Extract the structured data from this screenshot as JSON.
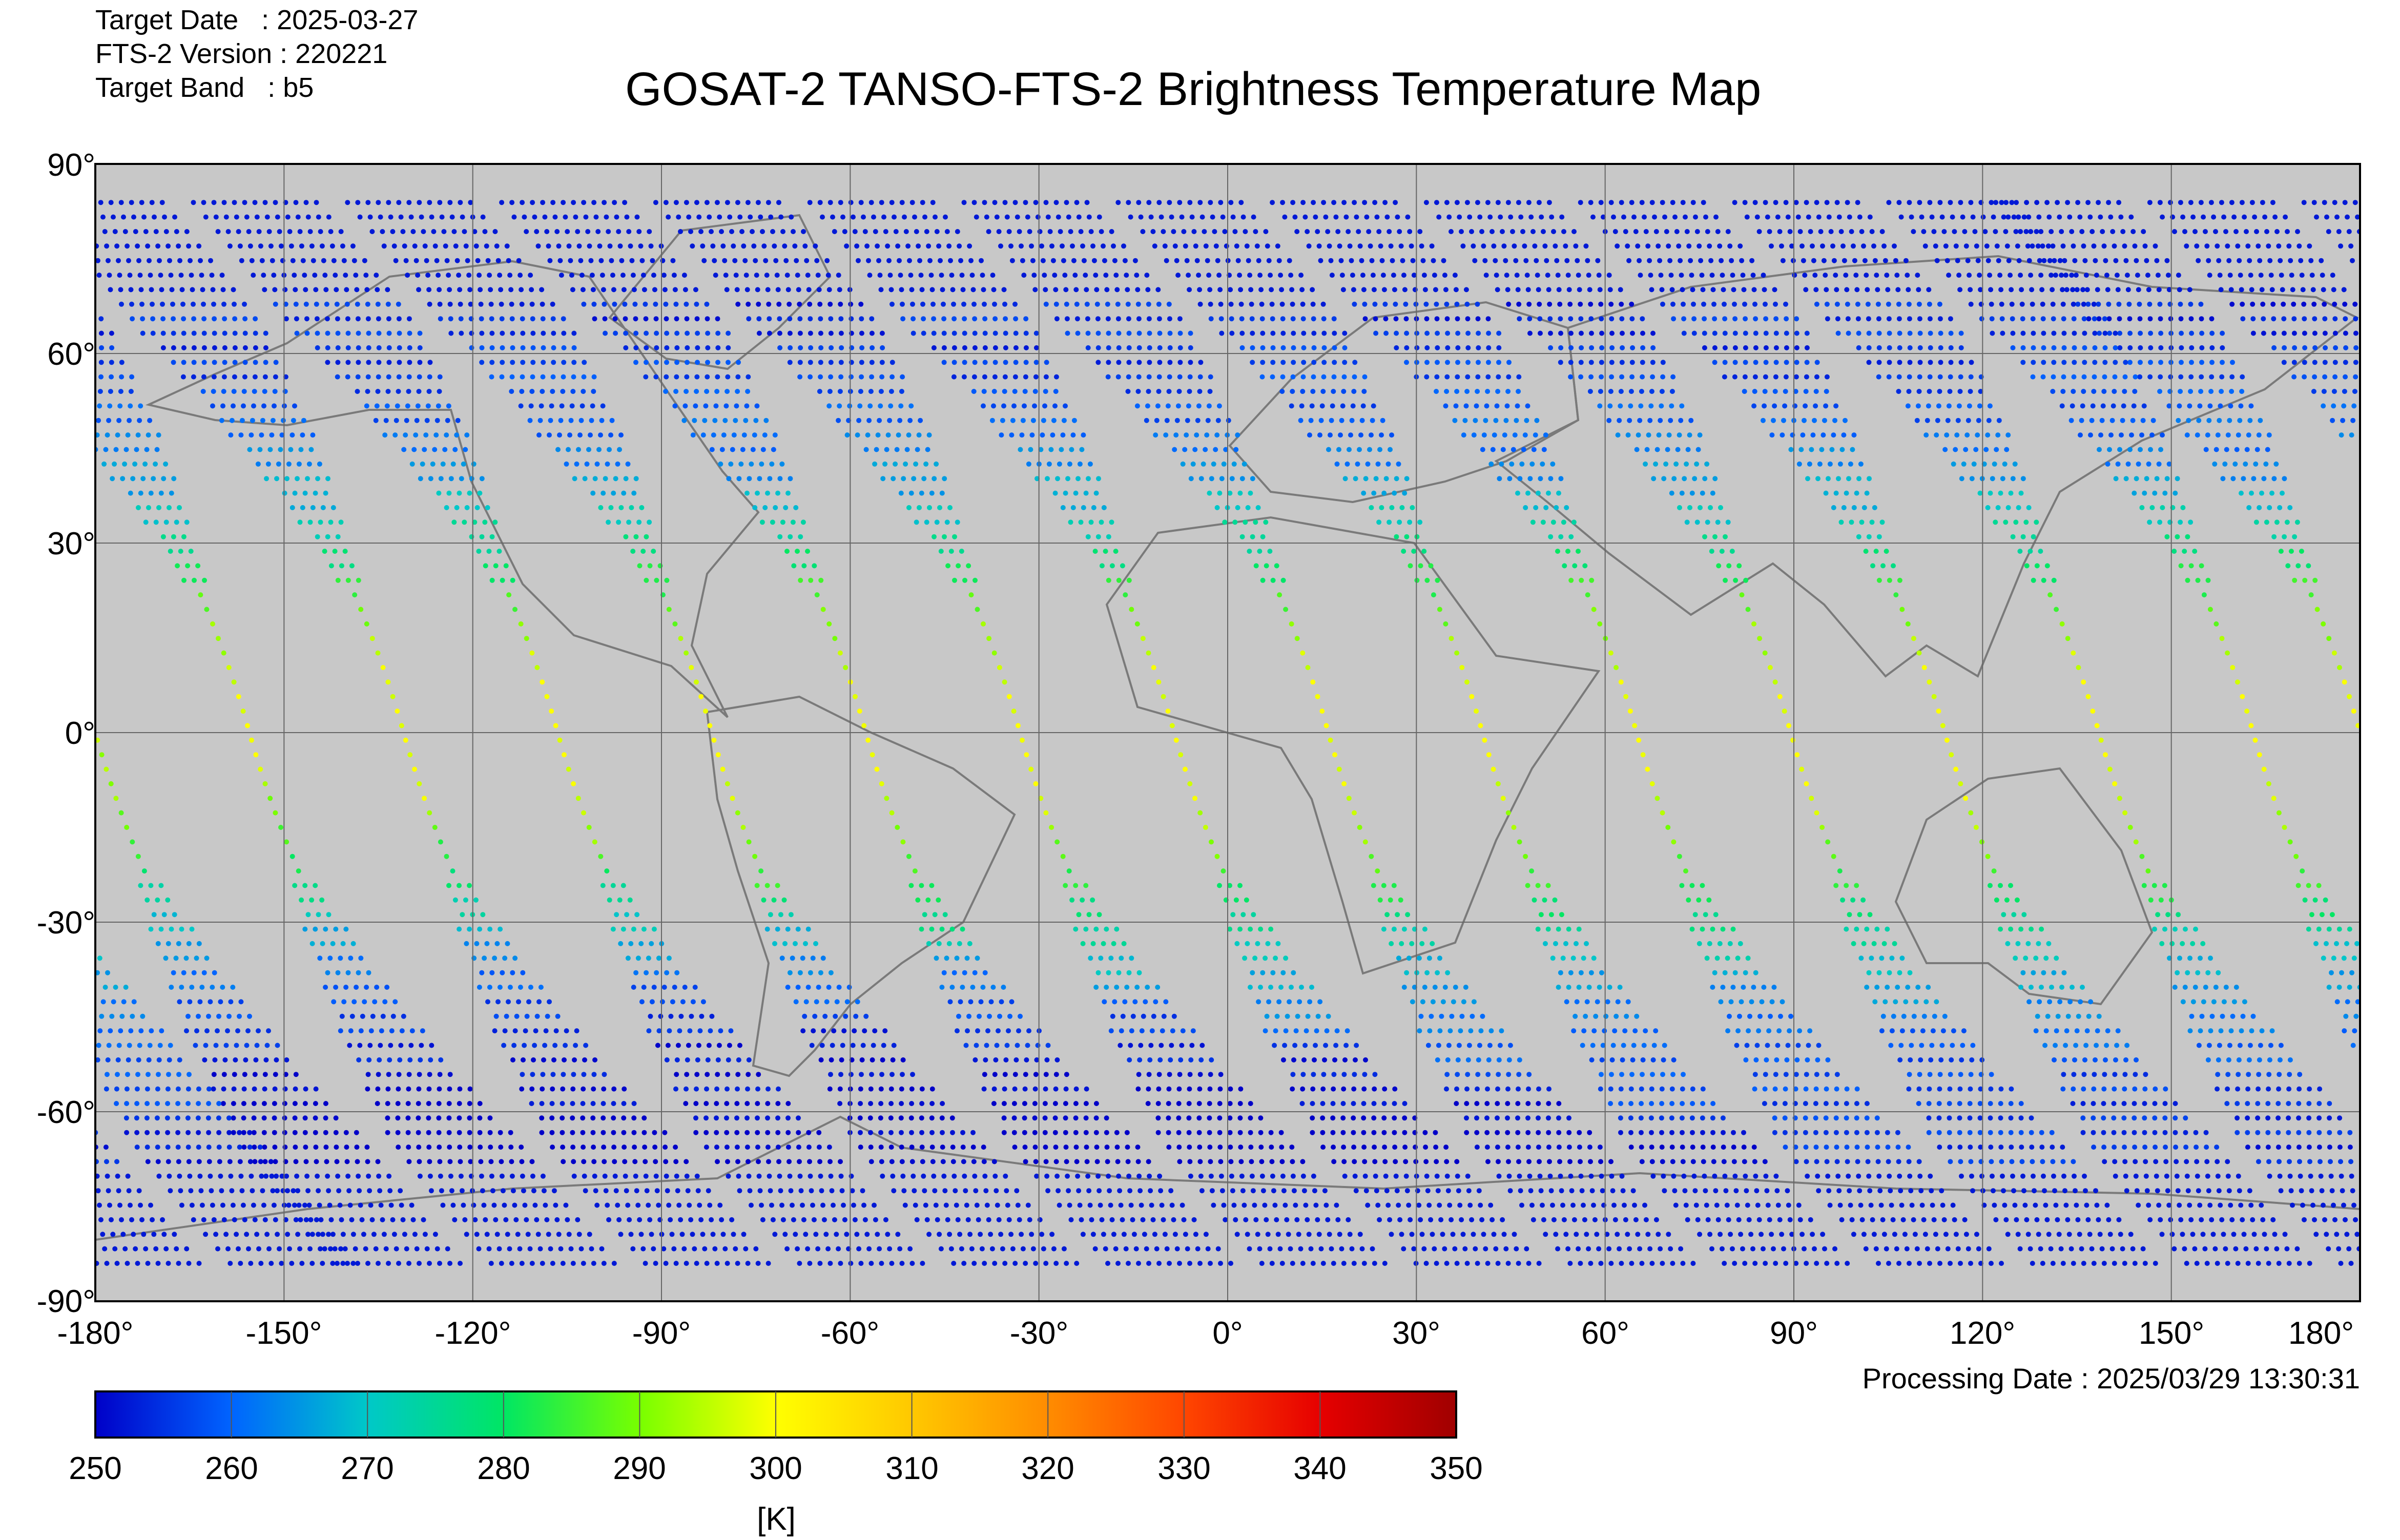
{
  "header": {
    "target_date": "Target Date   : 2025-03-27",
    "version": "FTS-2 Version : 220221",
    "target_band": "Target Band   : b5",
    "title": "GOSAT-2 TANSO-FTS-2 Brightness Temperature Map"
  },
  "map": {
    "background_color": "#c8c8c8",
    "coastline_color": "#7a7a7a",
    "lon_ticks": [
      "-180°",
      "-150°",
      "-120°",
      "-90°",
      "-60°",
      "-30°",
      "0°",
      "30°",
      "60°",
      "90°",
      "120°",
      "150°",
      "180°"
    ],
    "lat_ticks": [
      "90°",
      "60°",
      "30°",
      "0°",
      "-30°",
      "-60°",
      "-90°"
    ]
  },
  "colorbar": {
    "ticks": [
      "250",
      "260",
      "270",
      "280",
      "290",
      "300",
      "310",
      "320",
      "330",
      "340",
      "350"
    ],
    "unit": "[K]",
    "min": 250,
    "max": 350
  },
  "footer": {
    "processing_date": "Processing Date : 2025/03/29 13:30:31"
  }
}
